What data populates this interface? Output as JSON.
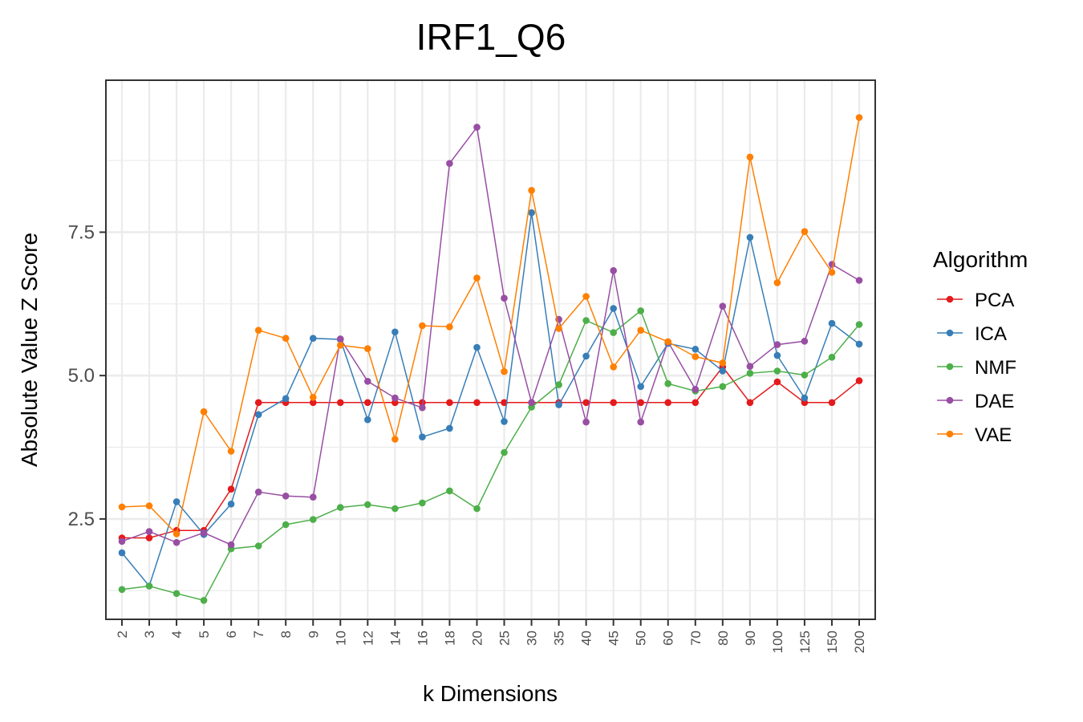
{
  "chart_data": {
    "type": "line",
    "title": "IRF1_Q6",
    "xlabel": "k Dimensions",
    "ylabel": "Absolute Value Z Score",
    "categories": [
      "2",
      "3",
      "4",
      "5",
      "6",
      "7",
      "8",
      "9",
      "10",
      "12",
      "14",
      "16",
      "18",
      "20",
      "25",
      "30",
      "35",
      "40",
      "45",
      "50",
      "60",
      "70",
      "80",
      "90",
      "100",
      "125",
      "150",
      "200"
    ],
    "ylim": [
      0.75,
      10.15
    ],
    "yticks": [
      2.5,
      5.0,
      7.5
    ],
    "ytick_labels": [
      "2.5",
      "5.0",
      "7.5"
    ],
    "grid": true,
    "legend": {
      "title": "Algorithm",
      "position": "right"
    },
    "series": [
      {
        "name": "PCA",
        "color": "#E41A1C",
        "values": [
          2.17,
          2.17,
          2.3,
          2.3,
          3.02,
          4.53,
          4.53,
          4.53,
          4.53,
          4.53,
          4.53,
          4.53,
          4.53,
          4.53,
          4.53,
          4.53,
          4.53,
          4.53,
          4.53,
          4.53,
          4.53,
          4.53,
          5.15,
          4.53,
          4.89,
          4.53,
          4.53,
          4.91
        ]
      },
      {
        "name": "ICA",
        "color": "#377EB8",
        "values": [
          1.91,
          1.33,
          2.8,
          2.23,
          2.76,
          4.32,
          4.6,
          5.65,
          5.63,
          4.23,
          5.76,
          3.93,
          4.08,
          5.49,
          4.2,
          7.84,
          4.49,
          5.34,
          6.17,
          4.81,
          5.56,
          5.46,
          5.08,
          7.41,
          5.35,
          4.61,
          5.91,
          5.55
        ]
      },
      {
        "name": "NMF",
        "color": "#4DAF4A",
        "values": [
          1.27,
          1.33,
          1.2,
          1.08,
          1.98,
          2.03,
          2.4,
          2.49,
          2.7,
          2.75,
          2.68,
          2.78,
          2.99,
          2.68,
          3.66,
          4.45,
          4.84,
          5.96,
          5.75,
          6.13,
          4.86,
          4.73,
          4.81,
          5.04,
          5.08,
          5.01,
          5.32,
          5.89
        ]
      },
      {
        "name": "DAE",
        "color": "#984EA3",
        "values": [
          2.11,
          2.28,
          2.09,
          2.26,
          2.05,
          2.97,
          2.9,
          2.88,
          5.64,
          4.9,
          4.61,
          4.44,
          8.7,
          9.33,
          6.35,
          4.53,
          5.98,
          4.19,
          6.83,
          4.19,
          5.59,
          4.76,
          6.21,
          5.16,
          5.54,
          5.6,
          6.94,
          6.66
        ]
      },
      {
        "name": "VAE",
        "color": "#FF7F00",
        "values": [
          2.71,
          2.73,
          2.24,
          4.37,
          3.68,
          5.79,
          5.65,
          4.62,
          5.53,
          5.47,
          3.89,
          5.87,
          5.85,
          6.7,
          5.07,
          8.23,
          5.82,
          6.38,
          5.15,
          5.79,
          5.59,
          5.33,
          5.22,
          8.81,
          6.62,
          7.51,
          6.8,
          9.5
        ]
      }
    ]
  }
}
